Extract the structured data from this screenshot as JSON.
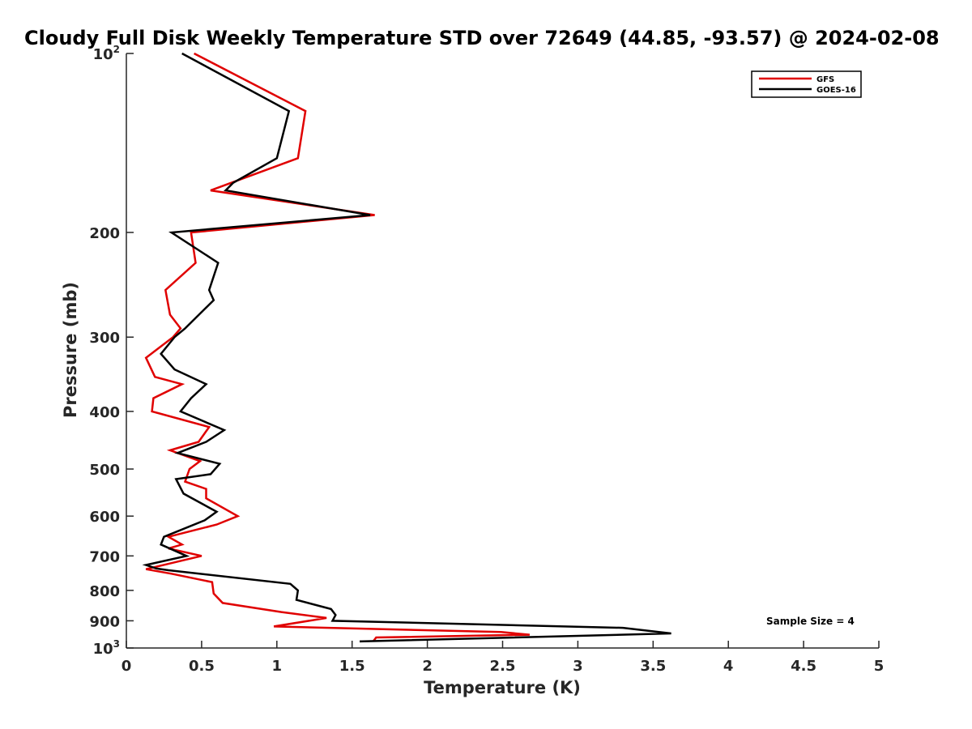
{
  "chart_data": {
    "type": "line",
    "title": "Cloudy Full Disk Weekly Temperature STD over 72649 (44.85, -93.57) @ 2024-02-08",
    "xlabel": "Temperature (K)",
    "ylabel": "Pressure (mb)",
    "xlim": [
      0,
      5
    ],
    "ylim": [
      100,
      1000
    ],
    "yscale": "log",
    "y_reversed": true,
    "grid": false,
    "legend_position": "top-right",
    "x_ticks": [
      "0",
      "0.5",
      "1",
      "1.5",
      "2",
      "2.5",
      "3",
      "3.5",
      "4",
      "4.5",
      "5"
    ],
    "y_ticks": [
      {
        "value": 100,
        "base": "10",
        "exp": "2"
      },
      {
        "value": 200,
        "label": "200"
      },
      {
        "value": 300,
        "label": "300"
      },
      {
        "value": 400,
        "label": "400"
      },
      {
        "value": 500,
        "label": "500"
      },
      {
        "value": 600,
        "label": "600"
      },
      {
        "value": 700,
        "label": "700"
      },
      {
        "value": 800,
        "label": "800"
      },
      {
        "value": 900,
        "label": "900"
      },
      {
        "value": 1000,
        "base": "10",
        "exp": "3"
      }
    ],
    "annotation": "Sample Size = 4",
    "series": [
      {
        "name": "GFS",
        "color": "#e00000",
        "points": [
          [
            0.45,
            100
          ],
          [
            1.19,
            125
          ],
          [
            1.14,
            150
          ],
          [
            0.56,
            170
          ],
          [
            1.65,
            187
          ],
          [
            0.43,
            200
          ],
          [
            0.46,
            225
          ],
          [
            0.26,
            250
          ],
          [
            0.29,
            275
          ],
          [
            0.36,
            290
          ],
          [
            0.31,
            300
          ],
          [
            0.13,
            325
          ],
          [
            0.19,
            350
          ],
          [
            0.37,
            360
          ],
          [
            0.18,
            380
          ],
          [
            0.17,
            400
          ],
          [
            0.55,
            425
          ],
          [
            0.48,
            450
          ],
          [
            0.29,
            465
          ],
          [
            0.49,
            485
          ],
          [
            0.42,
            500
          ],
          [
            0.39,
            525
          ],
          [
            0.53,
            540
          ],
          [
            0.53,
            560
          ],
          [
            0.74,
            600
          ],
          [
            0.6,
            620
          ],
          [
            0.28,
            650
          ],
          [
            0.37,
            670
          ],
          [
            0.28,
            680
          ],
          [
            0.5,
            700
          ],
          [
            0.13,
            737
          ],
          [
            0.3,
            750
          ],
          [
            0.57,
            775
          ],
          [
            0.58,
            810
          ],
          [
            0.64,
            840
          ],
          [
            1.03,
            870
          ],
          [
            1.33,
            890
          ],
          [
            0.98,
            920
          ],
          [
            2.49,
            940
          ],
          [
            2.68,
            950
          ],
          [
            1.66,
            960
          ],
          [
            1.64,
            975
          ]
        ]
      },
      {
        "name": "GOES-16",
        "color": "#000000",
        "points": [
          [
            0.37,
            100
          ],
          [
            1.08,
            125
          ],
          [
            1.0,
            150
          ],
          [
            0.71,
            165
          ],
          [
            0.66,
            170
          ],
          [
            1.62,
            187
          ],
          [
            0.3,
            200
          ],
          [
            0.61,
            225
          ],
          [
            0.55,
            250
          ],
          [
            0.58,
            260
          ],
          [
            0.39,
            290
          ],
          [
            0.32,
            300
          ],
          [
            0.23,
            320
          ],
          [
            0.32,
            340
          ],
          [
            0.53,
            360
          ],
          [
            0.43,
            380
          ],
          [
            0.36,
            400
          ],
          [
            0.65,
            430
          ],
          [
            0.53,
            450
          ],
          [
            0.34,
            470
          ],
          [
            0.62,
            490
          ],
          [
            0.56,
            510
          ],
          [
            0.33,
            520
          ],
          [
            0.38,
            550
          ],
          [
            0.6,
            590
          ],
          [
            0.52,
            610
          ],
          [
            0.25,
            650
          ],
          [
            0.23,
            670
          ],
          [
            0.4,
            700
          ],
          [
            0.13,
            725
          ],
          [
            0.2,
            735
          ],
          [
            0.28,
            740
          ],
          [
            1.09,
            780
          ],
          [
            1.14,
            800
          ],
          [
            1.13,
            830
          ],
          [
            1.36,
            860
          ],
          [
            1.39,
            880
          ],
          [
            1.37,
            900
          ],
          [
            3.3,
            925
          ],
          [
            3.62,
            945
          ],
          [
            1.55,
            975
          ]
        ]
      }
    ]
  }
}
